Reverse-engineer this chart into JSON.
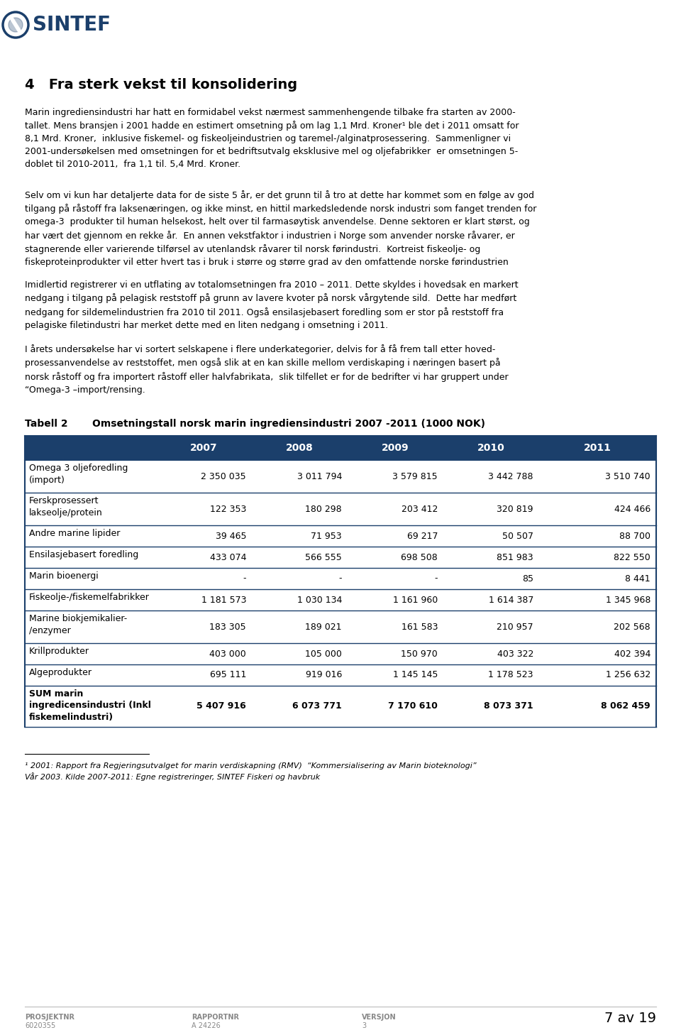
{
  "page_title": "4   Fra sterk vekst til konsolidering",
  "header_color": "#1B3F6B",
  "body_text_color": "#000000",
  "background_color": "#FFFFFF",
  "sintef_text": "SINTEF",
  "sintef_color": "#1B3F6B",
  "para1": "Marin ingrediensindustri har hatt en formidabel vekst nærmest sammenhengende tilbake fra starten av 2000-\ntallet. Mens bransjen i 2001 hadde en estimert omsetning på om lag 1,1 Mrd. Kroner¹ ble det i 2011 omsatt for\n8,1 Mrd. Kroner,  inklusive fiskemel- og fiskeoljeindustrien og taremel-/alginatprosessering.  Sammenligner vi\n2001-undersøkelsen med omsetningen for et bedriftsutvalg eksklusive mel og oljefabrikker  er omsetningen 5-\ndoblet til 2010-2011,  fra 1,1 til. 5,4 Mrd. Kroner.",
  "para2": "Selv om vi kun har detaljerte data for de siste 5 år, er det grunn til å tro at dette har kommet som en følge av god\ntilgang på råstoff fra laksenæringen, og ikke minst, en hittil markedsledende norsk industri som fanget trenden for\nomega-3  produkter til human helsekost, helt over til farmasøytisk anvendelse. Denne sektoren er klart størst, og\nhar vært det gjennom en rekke år.  En annen vekstfaktor i industrien i Norge som anvender norske råvarer, er\nstagnerende eller varierende tilførsel av utenlandsk råvarer til norsk førindustri.  Kortreist fiskeolje- og\nfiskeproteinprodukter vil etter hvert tas i bruk i større og større grad av den omfattende norske førindustrien",
  "para3": "Imidlertid registrerer vi en utflating av totalomsetningen fra 2010 – 2011. Dette skyldes i hovedsak en markert\nnedgang i tilgang på pelagisk reststoff på grunn av lavere kvoter på norsk vårgytende sild.  Dette har medført\nnedgang for sildemelindustrien fra 2010 til 2011. Også ensilasjebasert foredling som er stor på reststoff fra\npelagiske filetindustri har merket dette med en liten nedgang i omsetning i 2011.",
  "para4": "I årets undersøkelse har vi sortert selskapene i flere underkategorier, delvis for å få frem tall etter hoved-\nprosessanvendelse av reststoffet, men også slik at en kan skille mellom verdiskaping i næringen basert på\nnorsk råstoff og fra importert råstoff eller halvfabrikata,  slik tilfellet er for de bedrifter vi har gruppert under\n“Omega-3 –import/rensing.",
  "table_caption_left": "Tabell 2",
  "table_caption_right": "Omsetningstall norsk marin ingrediensindustri 2007 -2011 (1000 NOK)",
  "table_header": [
    "",
    "2007",
    "2008",
    "2009",
    "2010",
    "2011"
  ],
  "table_header_bg": "#1B3F6B",
  "table_header_color": "#FFFFFF",
  "table_rows": [
    [
      "Omega 3 oljeforedling\n(import)",
      "2 350 035",
      "3 011 794",
      "3 579 815",
      "3 442 788",
      "3 510 740"
    ],
    [
      "Ferskprosessert\nlakseolje/protein",
      "122 353",
      "180 298",
      "203 412",
      "320 819",
      "424 466"
    ],
    [
      "Andre marine lipider",
      "39 465",
      "71 953",
      "69 217",
      "50 507",
      "88 700"
    ],
    [
      "Ensilasjebasert foredling",
      "433 074",
      "566 555",
      "698 508",
      "851 983",
      "822 550"
    ],
    [
      "Marin bioenergi",
      "-",
      "-",
      "-",
      "85",
      "8 441"
    ],
    [
      "Fiskeolje-/fiskemelfabrikker",
      "1 181 573",
      "1 030 134",
      "1 161 960",
      "1 614 387",
      "1 345 968"
    ],
    [
      "Marine biokjemikalier-\n/enzymer",
      "183 305",
      "189 021",
      "161 583",
      "210 957",
      "202 568"
    ],
    [
      "Krillprodukter",
      "403 000",
      "105 000",
      "150 970",
      "403 322",
      "402 394"
    ],
    [
      "Algeprodukter",
      "695 111",
      "919 016",
      "1 145 145",
      "1 178 523",
      "1 256 632"
    ],
    [
      "SUM marin\ningredicensindustri (Inkl\nfiskemelindustri)",
      "5 407 916",
      "6 073 771",
      "7 170 610",
      "8 073 371",
      "8 062 459"
    ]
  ],
  "table_border_color": "#1B3F6B",
  "footnote_line": "¹ 2001: Rapport fra Regjeringsutvalget for marin verdiskapning (RMV)  “Kommersialisering av Marin bioteknologi”",
  "footnote_line2": "Vår 2003. Kilde 2007-2011: Egne registreringer, SINTEF Fiskeri og havbruk",
  "footer_left1": "PROSJEKTNR",
  "footer_left2": "6020355",
  "footer_mid1": "RAPPORTNR",
  "footer_mid2": "A 24226",
  "footer_right1": "VERSJON",
  "footer_right2": "3",
  "footer_page": "7 av 19"
}
